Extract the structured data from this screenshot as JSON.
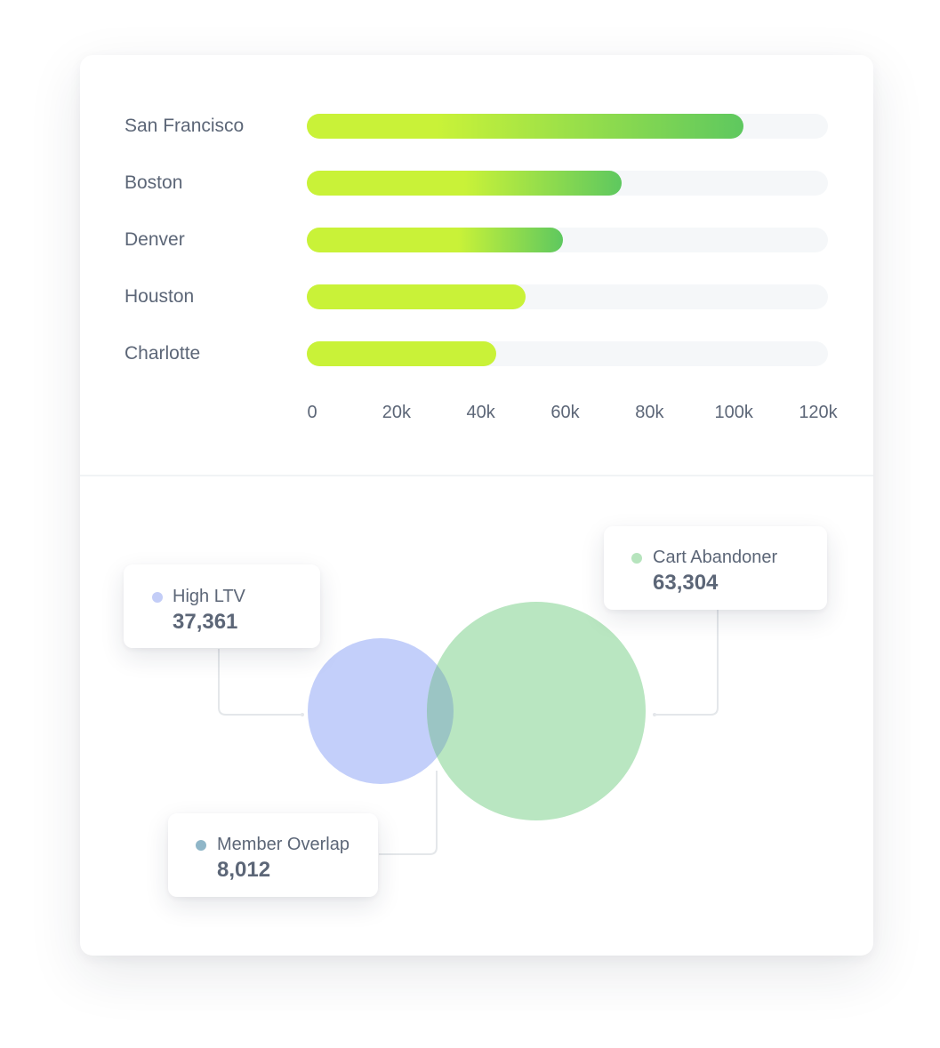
{
  "chart_data": [
    {
      "type": "bar",
      "orientation": "horizontal",
      "categories": [
        "San Francisco",
        "Boston",
        "Denver",
        "Houston",
        "Charlotte"
      ],
      "values": [
        104000,
        75000,
        61000,
        52000,
        45000
      ],
      "xlim": [
        0,
        124000
      ],
      "x_tick_labels": [
        "0",
        "20k",
        "40k",
        "60k",
        "80k",
        "100k",
        "120k"
      ],
      "x_tick_values": [
        0,
        20000,
        40000,
        60000,
        80000,
        100000,
        120000
      ],
      "title": "",
      "xlabel": "",
      "ylabel": "",
      "grid": false,
      "colors": {
        "bar_start": "#c9f238",
        "bar_end": "#5ec85f",
        "track": "#f5f7f9"
      }
    },
    {
      "type": "venn",
      "sets": [
        {
          "name": "High LTV",
          "value_label": "37,361",
          "value": 37361,
          "color": "#aebcf7",
          "dot_color": "#c3cdf7"
        },
        {
          "name": "Cart Abandoner",
          "value_label": "63,304",
          "value": 63304,
          "color": "#a5e0af",
          "dot_color": "#b6e4bd"
        }
      ],
      "overlap": {
        "name": "Member Overlap",
        "value_label": "8,012",
        "value": 8012,
        "color": "#8fb6c8"
      }
    }
  ]
}
